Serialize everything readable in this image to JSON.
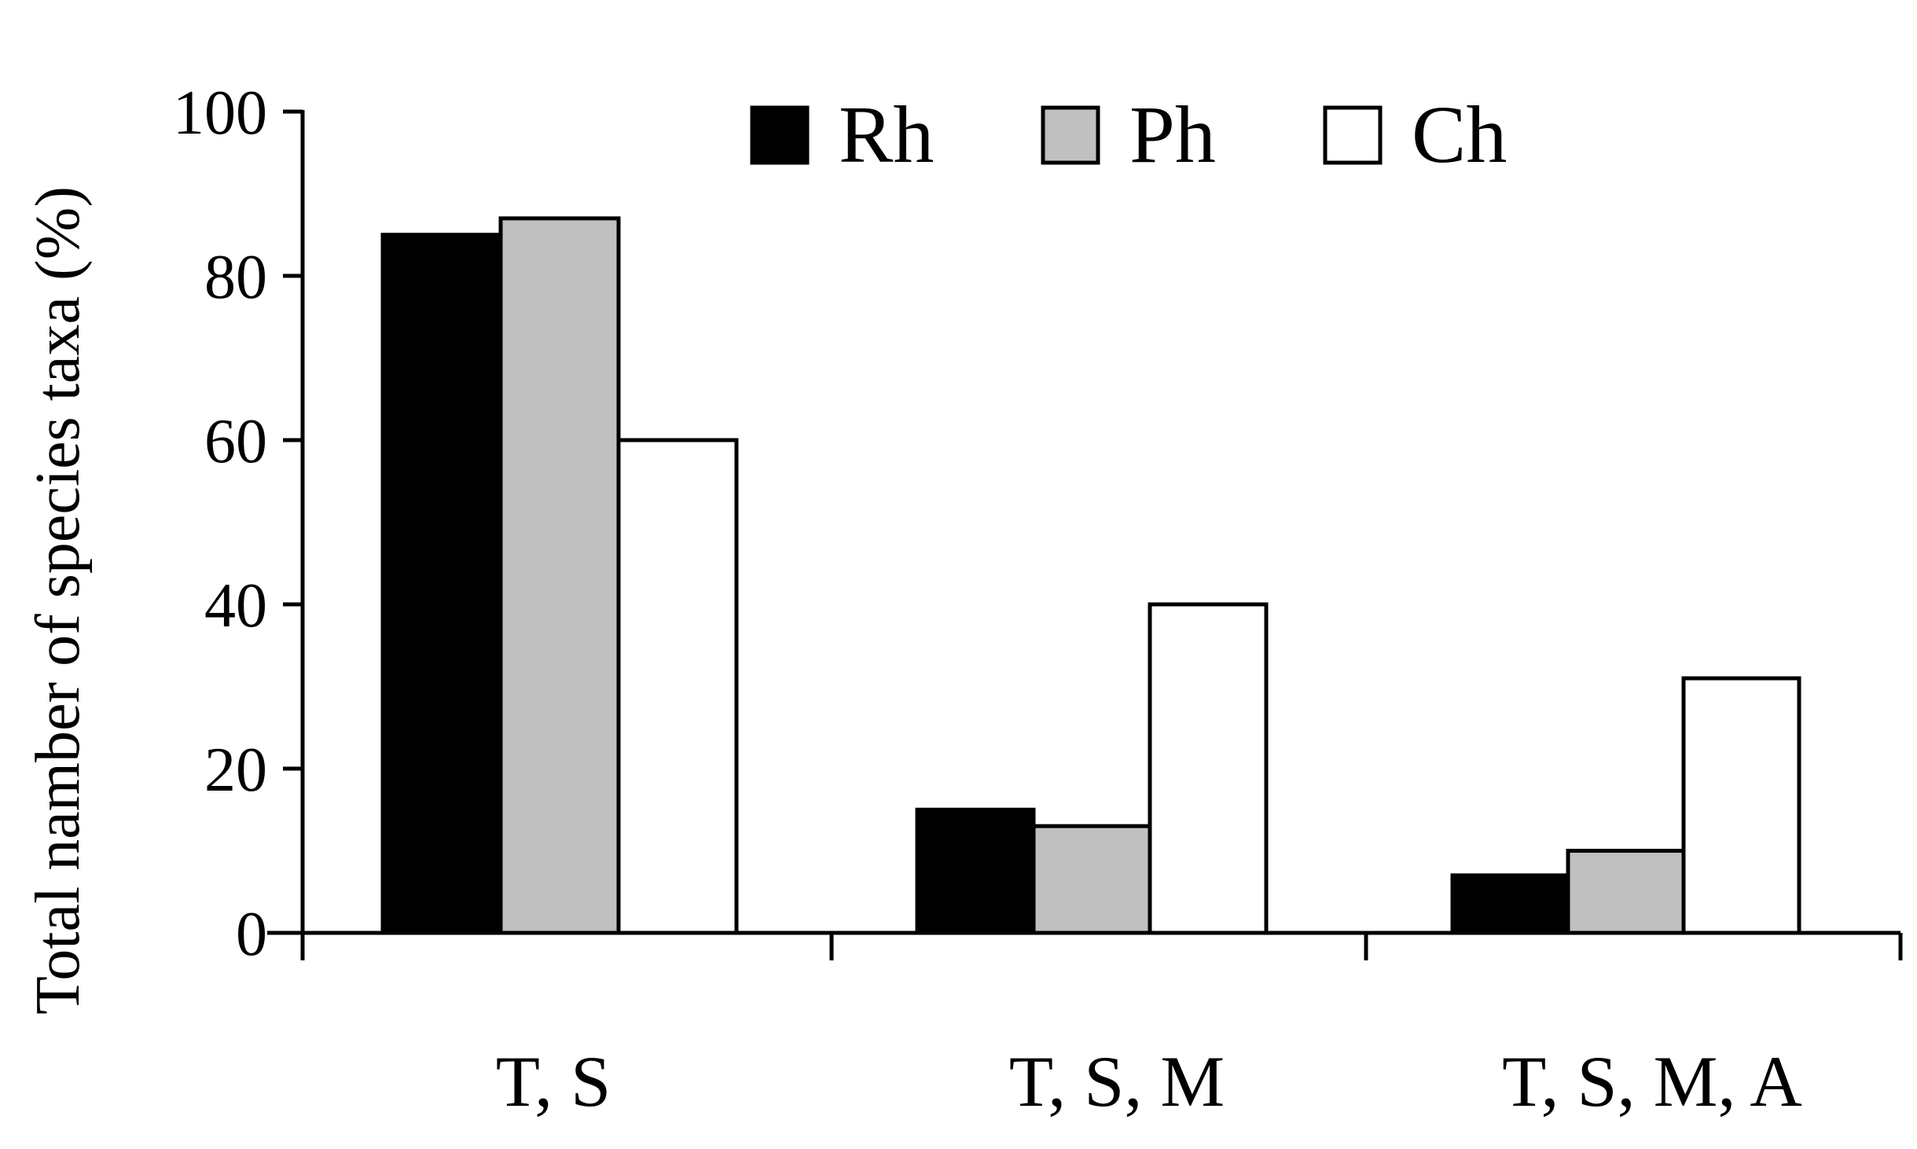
{
  "chart_data": {
    "type": "bar",
    "ylabel": "Total namber of species taxa (%)",
    "xlabel": "",
    "ylim": [
      0,
      100
    ],
    "yticks": [
      "0",
      "20",
      "40",
      "60",
      "80",
      "100"
    ],
    "categories": [
      "T, S",
      "T, S, M",
      "T, S, M, A"
    ],
    "series": [
      {
        "name": "Rh",
        "color": "#000000",
        "values": [
          85,
          15,
          7
        ]
      },
      {
        "name": "Ph",
        "color": "#c0c0c0",
        "values": [
          87,
          13,
          10
        ]
      },
      {
        "name": "Ch",
        "color": "#ffffff",
        "values": [
          60,
          40,
          31
        ]
      }
    ],
    "legend_position": "top",
    "grid": false
  }
}
